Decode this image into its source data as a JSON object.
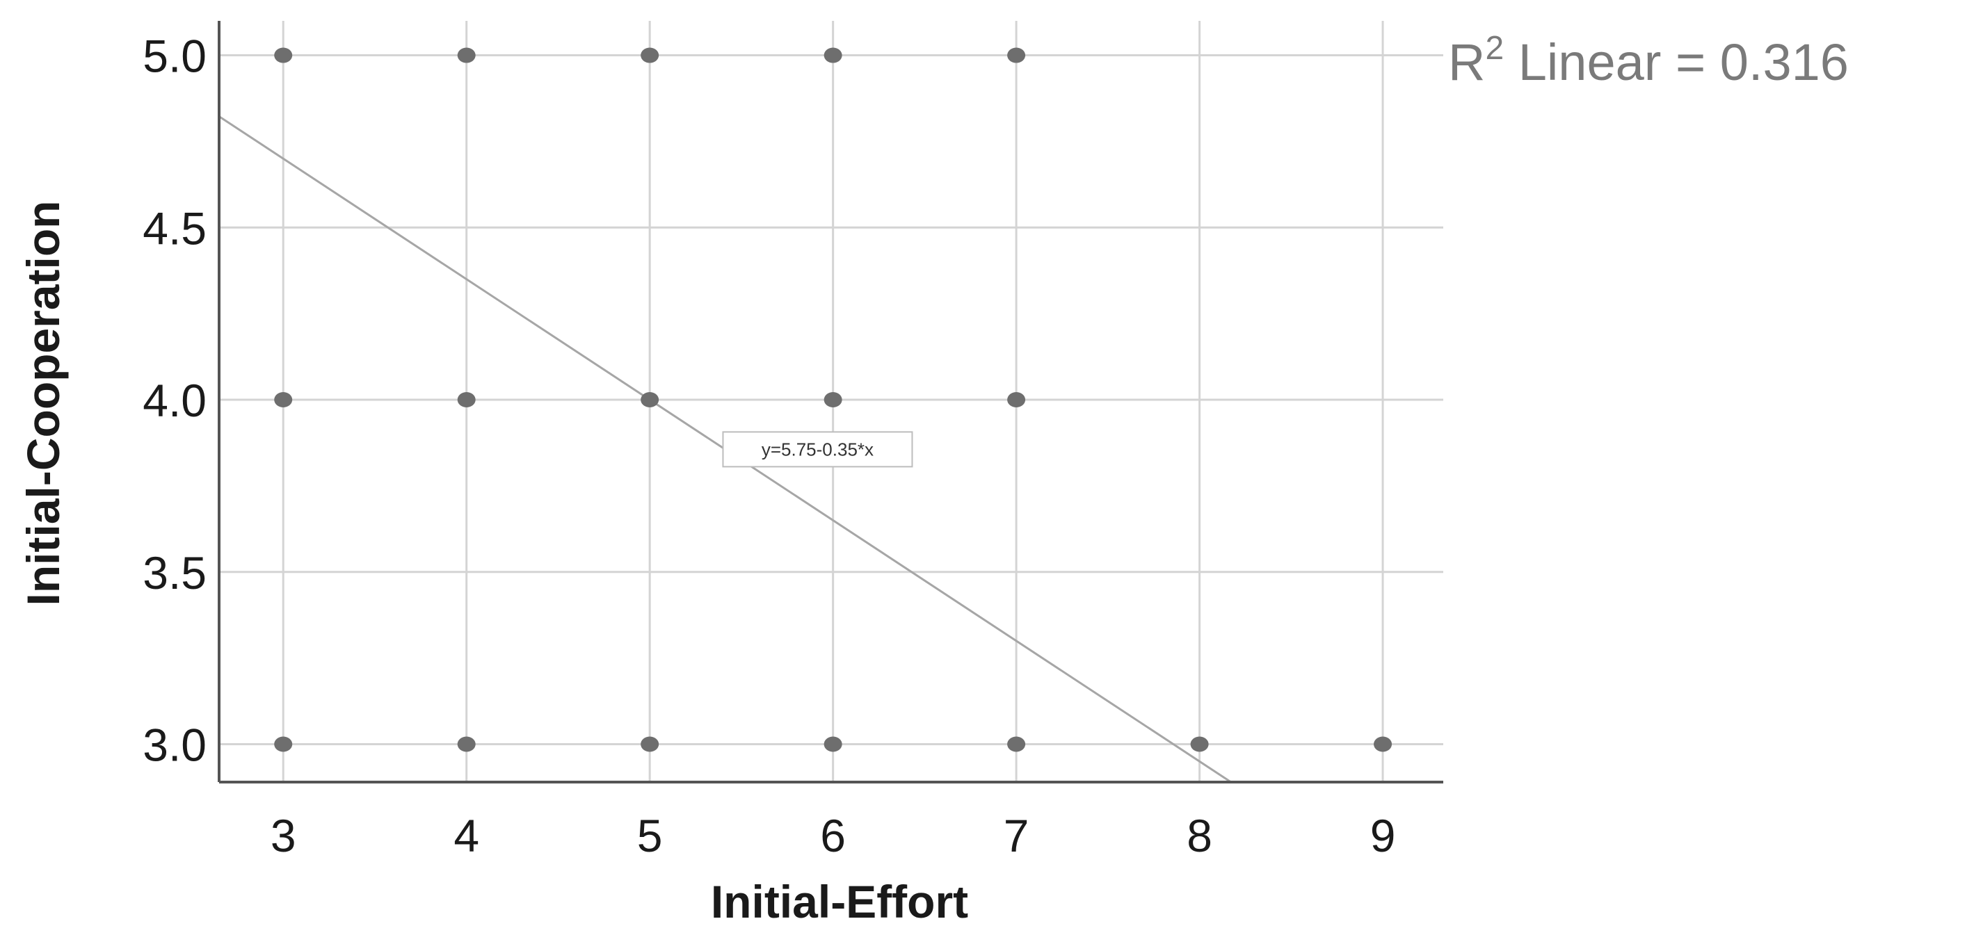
{
  "chart_data": {
    "type": "scatter",
    "title": "",
    "xlabel": "Initial-Effort",
    "ylabel": "Initial-Cooperation",
    "xlim": [
      2.65,
      9.33
    ],
    "ylim": [
      2.89,
      5.1
    ],
    "x_ticks": [
      "3",
      "4",
      "5",
      "6",
      "7",
      "8",
      "9"
    ],
    "y_ticks": [
      "3.0",
      "3.5",
      "4.0",
      "4.5",
      "5.0"
    ],
    "x_tick_values": [
      3,
      4,
      5,
      6,
      7,
      8,
      9
    ],
    "y_tick_values": [
      3.0,
      3.5,
      4.0,
      4.5,
      5.0
    ],
    "grid": true,
    "points": [
      {
        "x": 3,
        "y": 5.0
      },
      {
        "x": 4,
        "y": 5.0
      },
      {
        "x": 5,
        "y": 5.0
      },
      {
        "x": 6,
        "y": 5.0
      },
      {
        "x": 7,
        "y": 5.0
      },
      {
        "x": 3,
        "y": 4.0
      },
      {
        "x": 4,
        "y": 4.0
      },
      {
        "x": 5,
        "y": 4.0
      },
      {
        "x": 6,
        "y": 4.0
      },
      {
        "x": 7,
        "y": 4.0
      },
      {
        "x": 3,
        "y": 3.0
      },
      {
        "x": 4,
        "y": 3.0
      },
      {
        "x": 5,
        "y": 3.0
      },
      {
        "x": 6,
        "y": 3.0
      },
      {
        "x": 7,
        "y": 3.0
      },
      {
        "x": 8,
        "y": 3.0
      },
      {
        "x": 9,
        "y": 3.0
      }
    ],
    "fit_line": {
      "intercept": 5.75,
      "slope": -0.35,
      "equation_label": "y=5.75-0.35*x",
      "label_anchor": {
        "x": 5.43,
        "y": 3.85
      }
    },
    "r2_label": {
      "prefix": "R",
      "superscript": "2",
      "suffix": " Linear = 0.316"
    },
    "colors": {
      "points": "#6e6e6e",
      "grid": "#d4d4d4",
      "axis": "#555555",
      "fit_line": "#a6a6a6",
      "r2_text": "#7a7a7a"
    }
  }
}
